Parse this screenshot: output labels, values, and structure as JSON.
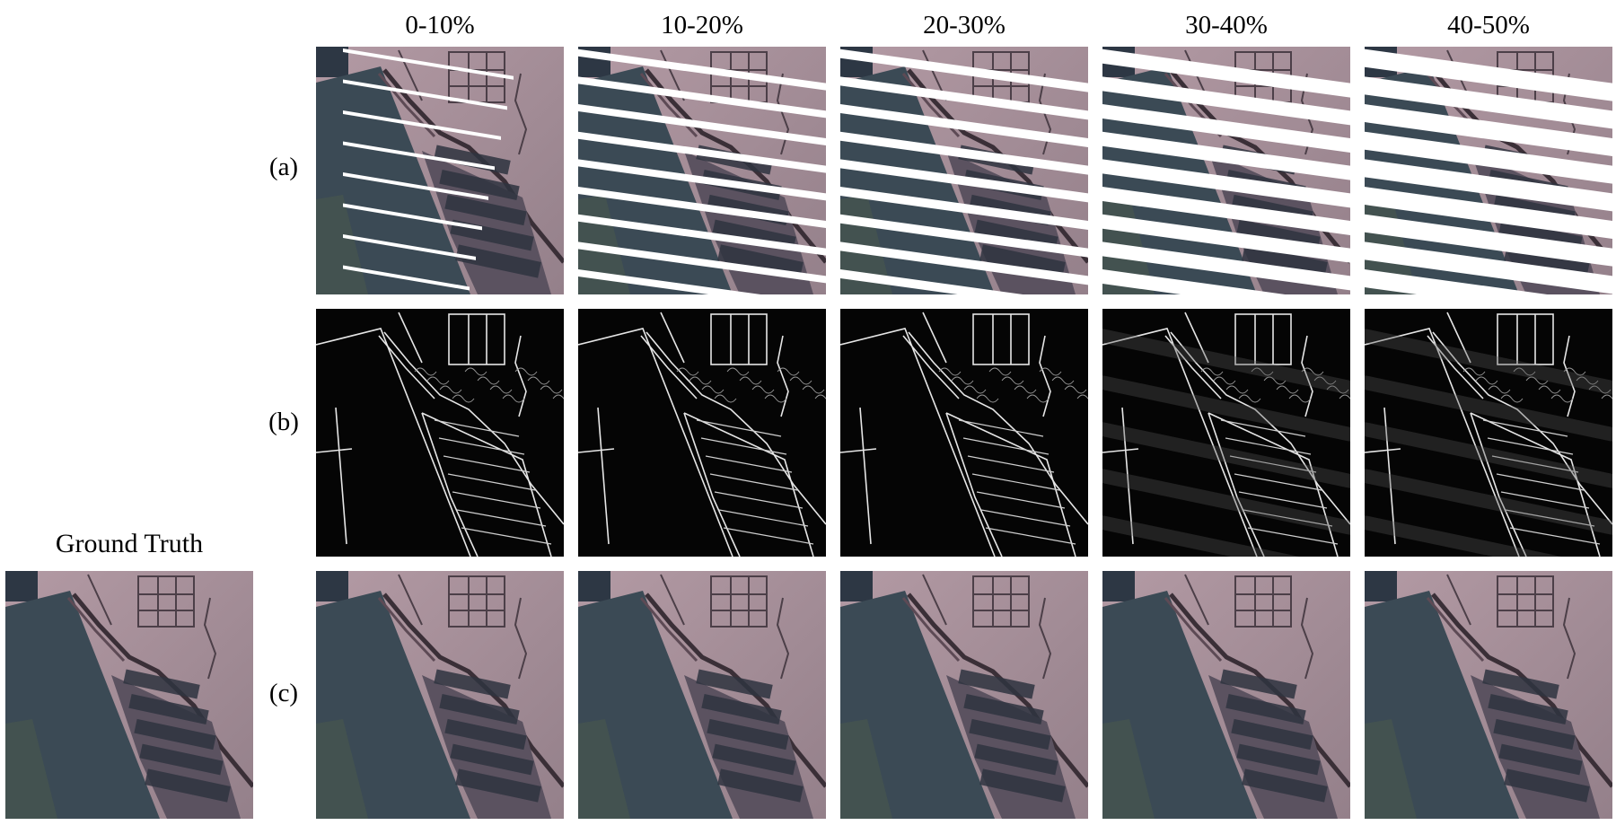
{
  "figure": {
    "column_headers": [
      "0-10%",
      "10-20%",
      "20-30%",
      "30-40%",
      "40-50%"
    ],
    "row_labels": [
      "(a)",
      "(b)",
      "(c)"
    ],
    "ground_truth_label": "Ground Truth",
    "stripe_counts": [
      8,
      9,
      9,
      9,
      9
    ],
    "stripe_widths": [
      4,
      8,
      10,
      16,
      20
    ],
    "colors": {
      "background": "#ffffff",
      "water": "#3b4a55",
      "land": "#a88f98",
      "edge_bg": "#050505",
      "edge_line": "#e6e6e6"
    }
  }
}
